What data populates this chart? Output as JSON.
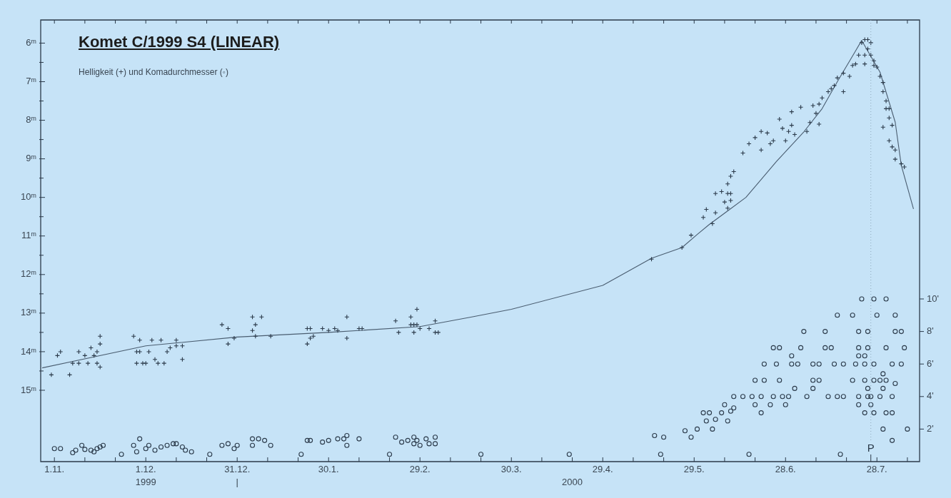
{
  "chart_data": {
    "type": "scatter",
    "title": "Komet C/1999 S4 (LINEAR)",
    "subtitle": "Helligkeit (+) und Komadurchmesser (◦)",
    "xlim": [
      "1999-10-27T12:00",
      "2000-08-11"
    ],
    "xticks": [
      {
        "value": "1999-11-01",
        "label": "1.11."
      },
      {
        "value": "1999-11-11",
        "label": null
      },
      {
        "value": "1999-11-21",
        "label": null
      },
      {
        "value": "1999-12-01",
        "label": "1.12."
      },
      {
        "value": "1999-12-11",
        "label": null
      },
      {
        "value": "1999-12-21",
        "label": null
      },
      {
        "value": "1999-12-31",
        "label": "31.12."
      },
      {
        "value": "2000-01-10",
        "label": null
      },
      {
        "value": "2000-01-20",
        "label": null
      },
      {
        "value": "2000-01-30",
        "label": "30.1."
      },
      {
        "value": "2000-02-09",
        "label": null
      },
      {
        "value": "2000-02-19",
        "label": null
      },
      {
        "value": "2000-02-29",
        "label": "29.2."
      },
      {
        "value": "2000-03-10",
        "label": null
      },
      {
        "value": "2000-03-20",
        "label": null
      },
      {
        "value": "2000-03-30",
        "label": "30.3."
      },
      {
        "value": "2000-04-09",
        "label": null
      },
      {
        "value": "2000-04-19",
        "label": null
      },
      {
        "value": "2000-04-29",
        "label": "29.4."
      },
      {
        "value": "2000-05-09",
        "label": null
      },
      {
        "value": "2000-05-19",
        "label": null
      },
      {
        "value": "2000-05-29",
        "label": "29.5."
      },
      {
        "value": "2000-06-08",
        "label": null
      },
      {
        "value": "2000-06-18",
        "label": null
      },
      {
        "value": "2000-06-28",
        "label": "28.6."
      },
      {
        "value": "2000-07-08",
        "label": null
      },
      {
        "value": "2000-07-18",
        "label": null
      },
      {
        "value": "2000-07-28",
        "label": "28.7."
      },
      {
        "value": "2000-08-07",
        "label": null
      }
    ],
    "ylim": [
      16.85,
      5.4
    ],
    "yticks": [
      {
        "value": 6,
        "label": "6ᵐ"
      },
      {
        "value": 6.5,
        "label": null
      },
      {
        "value": 7,
        "label": "7ᵐ"
      },
      {
        "value": 7.5,
        "label": null
      },
      {
        "value": 8,
        "label": "8ᵐ"
      },
      {
        "value": 8.5,
        "label": null
      },
      {
        "value": 9,
        "label": "9ᵐ"
      },
      {
        "value": 9.5,
        "label": null
      },
      {
        "value": 10,
        "label": "10ᵐ"
      },
      {
        "value": 10.5,
        "label": null
      },
      {
        "value": 11,
        "label": "11ᵐ"
      },
      {
        "value": 11.5,
        "label": null
      },
      {
        "value": 12,
        "label": "12ᵐ"
      },
      {
        "value": 12.5,
        "label": null
      },
      {
        "value": 13,
        "label": "13ᵐ"
      },
      {
        "value": 13.5,
        "label": null
      },
      {
        "value": 14,
        "label": "14ᵐ"
      },
      {
        "value": 14.5,
        "label": null
      },
      {
        "value": 15,
        "label": "15ᵐ"
      }
    ],
    "y2lim": [
      0,
      27.15
    ],
    "y2ticks": [
      {
        "value": 2,
        "label": "2'"
      },
      {
        "value": 4,
        "label": "4'"
      },
      {
        "value": 6,
        "label": "6'"
      },
      {
        "value": 8,
        "label": "8'"
      },
      {
        "value": 10,
        "label": "10'"
      }
    ],
    "legend": false,
    "ref_lines": [
      {
        "axis": "x",
        "value": "2000-07-26",
        "label": "P",
        "line_style": "dotted",
        "color": "#8fa9bd"
      }
    ],
    "x2lim": [
      "1999-10-27T12:00",
      "2000-08-11"
    ],
    "x2ticks": [
      {
        "value": "1999-12-01",
        "label": "1999"
      },
      {
        "value": "1999-12-31",
        "label": "|"
      },
      {
        "value": "2000-04-19",
        "label": "2000"
      }
    ],
    "series": [
      {
        "marker": "cross",
        "color": "#2b3a4a",
        "x": [
          "1999-10-31",
          "1999-11-02",
          "1999-11-03",
          "1999-11-06",
          "1999-11-07",
          "1999-11-09",
          "1999-11-09",
          "1999-11-11",
          "1999-11-12",
          "1999-11-13",
          "1999-11-14",
          "1999-11-15",
          "1999-11-15",
          "1999-11-16",
          "1999-11-16",
          "1999-11-16",
          "1999-11-27",
          "1999-11-28",
          "1999-11-28",
          "1999-11-29",
          "1999-11-29",
          "1999-11-30",
          "1999-12-01",
          "1999-12-02",
          "1999-12-03",
          "1999-12-04",
          "1999-12-05",
          "1999-12-06",
          "1999-12-07",
          "1999-12-08",
          "1999-12-09",
          "1999-12-11",
          "1999-12-11",
          "1999-12-13",
          "1999-12-13",
          "1999-12-26",
          "1999-12-28",
          "1999-12-28",
          "1999-12-30",
          "2000-01-05",
          "2000-01-06",
          "2000-01-05",
          "2000-01-06",
          "2000-01-08",
          "2000-01-11",
          "2000-01-23",
          "2000-01-24",
          "2000-01-23",
          "2000-01-24",
          "2000-01-25",
          "2000-01-28",
          "2000-01-30",
          "2000-02-01",
          "2000-02-02",
          "2000-02-05",
          "2000-02-05",
          "2000-02-09",
          "2000-02-10",
          "2000-02-21",
          "2000-02-22",
          "2000-02-26",
          "2000-02-26",
          "2000-02-27",
          "2000-02-27",
          "2000-02-28",
          "2000-02-28",
          "2000-02-29",
          "2000-03-03",
          "2000-03-05",
          "2000-03-05",
          "2000-03-06",
          "2000-05-15",
          "2000-05-25",
          "2000-05-28",
          "2000-06-01",
          "2000-06-02",
          "2000-06-05",
          "2000-06-04",
          "2000-06-05",
          "2000-06-07",
          "2000-06-09",
          "2000-06-10",
          "2000-06-08",
          "2000-06-10",
          "2000-06-09",
          "2000-06-09",
          "2000-06-10",
          "2000-06-11",
          "2000-06-14",
          "2000-06-16",
          "2000-06-18",
          "2000-06-20",
          "2000-06-22",
          "2000-06-20",
          "2000-06-23",
          "2000-06-24",
          "2000-06-26",
          "2000-06-27",
          "2000-06-28",
          "2000-06-29",
          "2000-06-30",
          "2000-07-01",
          "2000-06-30",
          "2000-07-03",
          "2000-07-05",
          "2000-07-06",
          "2000-07-07",
          "2000-07-09",
          "2000-07-08",
          "2000-07-09",
          "2000-07-10",
          "2000-07-12",
          "2000-07-13",
          "2000-07-14",
          "2000-07-15",
          "2000-07-17",
          "2000-07-17",
          "2000-07-19",
          "2000-07-20",
          "2000-07-22",
          "2000-07-23",
          "2000-07-24",
          "2000-07-25",
          "2000-07-26",
          "2000-07-25",
          "2000-07-24",
          "2000-07-26",
          "2000-07-27",
          "2000-07-21",
          "2000-07-24",
          "2000-07-27",
          "2000-07-28",
          "2000-07-29",
          "2000-07-30",
          "2000-07-30",
          "2000-07-31",
          "2000-07-31",
          "2000-08-01",
          "2000-07-30",
          "2000-08-01",
          "2000-08-02",
          "2000-08-01",
          "2000-08-02",
          "2000-08-03",
          "2000-08-03",
          "2000-08-05",
          "2000-08-06"
        ],
        "values": [
          14.6,
          14.1,
          14.0,
          14.6,
          14.3,
          14.3,
          14.0,
          14.1,
          14.3,
          13.9,
          14.1,
          14.3,
          14.0,
          14.4,
          13.6,
          13.8,
          13.6,
          14.0,
          14.3,
          13.7,
          14.0,
          14.3,
          14.3,
          14.0,
          13.7,
          14.2,
          14.3,
          13.7,
          14.3,
          14.0,
          13.9,
          13.7,
          13.85,
          13.85,
          14.2,
          13.3,
          13.4,
          13.8,
          13.65,
          13.1,
          13.3,
          13.45,
          13.6,
          13.1,
          13.6,
          13.4,
          13.4,
          13.8,
          13.65,
          13.6,
          13.4,
          13.45,
          13.4,
          13.45,
          13.1,
          13.65,
          13.4,
          13.4,
          13.2,
          13.5,
          13.1,
          13.3,
          13.3,
          13.5,
          13.3,
          12.9,
          13.4,
          13.4,
          13.2,
          13.5,
          13.5,
          11.6,
          11.3,
          10.98,
          10.52,
          10.31,
          10.4,
          10.68,
          9.9,
          9.85,
          9.9,
          9.9,
          10.12,
          10.08,
          10.28,
          9.65,
          9.45,
          9.33,
          8.85,
          8.61,
          8.45,
          8.29,
          8.33,
          8.77,
          8.61,
          8.53,
          7.97,
          8.21,
          8.53,
          8.29,
          8.13,
          8.37,
          7.78,
          7.66,
          8.29,
          8.06,
          7.62,
          7.58,
          7.82,
          8.1,
          7.42,
          7.26,
          7.18,
          7.1,
          6.9,
          6.78,
          7.26,
          6.86,
          6.58,
          6.31,
          5.99,
          5.91,
          5.91,
          5.99,
          6.15,
          6.31,
          6.31,
          6.46,
          6.54,
          6.54,
          6.58,
          6.62,
          6.86,
          7.02,
          7.26,
          7.5,
          7.7,
          7.7,
          8.18,
          7.94,
          8.13,
          8.53,
          8.69,
          8.77,
          9.01,
          9.13,
          9.21
        ]
      },
      {
        "type": "line",
        "marker": "none",
        "color": "#4a5d70",
        "x": [
          "1999-10-28",
          "1999-12-01",
          "1999-12-31",
          "2000-01-30",
          "2000-02-29",
          "2000-03-17",
          "2000-03-30",
          "2000-04-29",
          "2000-05-15",
          "2000-05-25",
          "2000-05-30",
          "2000-06-03",
          "2000-06-15",
          "2000-06-25",
          "2000-07-04",
          "2000-07-10",
          "2000-07-15",
          "2000-07-21",
          "2000-07-23",
          "2000-07-29",
          "2000-08-03",
          "2000-08-05",
          "2000-08-09"
        ],
        "values": [
          14.42,
          13.85,
          13.62,
          13.5,
          13.35,
          13.1,
          12.9,
          12.28,
          11.58,
          11.3,
          10.96,
          10.7,
          10.0,
          9.07,
          8.3,
          7.7,
          7.0,
          6.2,
          5.93,
          6.75,
          8.05,
          9.17,
          10.3
        ]
      },
      {
        "marker": "circle",
        "axis": "y2",
        "color": "#2b3a4a",
        "x": [
          "1999-11-01",
          "1999-11-03",
          "1999-11-07",
          "1999-11-08",
          "1999-11-10",
          "1999-11-11",
          "1999-11-13",
          "1999-11-14",
          "1999-11-15",
          "1999-11-16",
          "1999-11-17",
          "1999-11-27",
          "1999-11-28",
          "1999-11-29",
          "1999-12-01",
          "1999-12-02",
          "1999-12-04",
          "1999-12-06",
          "1999-12-08",
          "1999-12-10",
          "1999-12-11",
          "1999-12-13",
          "1999-12-14",
          "1999-12-16",
          "1999-12-26",
          "1999-12-28",
          "1999-12-30",
          "1999-12-31",
          "2000-01-05",
          "2000-01-05",
          "2000-01-07",
          "2000-01-09",
          "2000-01-11",
          "2000-01-23",
          "2000-01-24",
          "2000-01-28",
          "2000-01-30",
          "2000-02-02",
          "2000-02-04",
          "2000-02-05",
          "2000-02-05",
          "2000-02-09",
          "2000-02-21",
          "2000-02-23",
          "2000-02-25",
          "2000-02-27",
          "2000-02-27",
          "2000-02-28",
          "2000-02-29",
          "2000-03-02",
          "2000-03-03",
          "2000-03-05",
          "2000-03-05",
          "2000-05-16",
          "2000-05-19",
          "2000-05-26",
          "2000-05-28",
          "2000-05-30",
          "2000-06-01",
          "2000-06-03",
          "2000-06-02",
          "2000-06-04",
          "2000-06-05",
          "2000-06-07",
          "2000-06-08",
          "2000-06-09",
          "2000-06-10",
          "2000-06-11",
          "2000-06-11",
          "2000-06-14",
          "2000-06-17",
          "2000-06-20",
          "2000-06-18",
          "2000-06-20",
          "2000-06-18",
          "2000-06-21",
          "2000-06-26",
          "2000-06-21",
          "2000-06-25",
          "2000-06-24",
          "2000-06-26",
          "2000-06-23",
          "2000-06-24",
          "2000-06-27",
          "2000-06-28",
          "2000-06-29",
          "2000-06-30",
          "2000-07-02",
          "2000-06-30",
          "2000-07-01",
          "2000-07-03",
          "2000-07-04",
          "2000-07-05",
          "2000-07-07",
          "2000-07-07",
          "2000-07-07",
          "2000-07-09",
          "2000-07-09",
          "2000-07-11",
          "2000-07-11",
          "2000-07-12",
          "2000-07-13",
          "2000-07-14",
          "2000-07-15",
          "2000-07-15",
          "2000-07-17",
          "2000-07-17",
          "2000-07-20",
          "2000-07-21",
          "2000-07-22",
          "2000-07-22",
          "2000-07-22",
          "2000-07-22",
          "2000-07-20",
          "2000-07-22",
          "2000-07-23",
          "2000-07-24",
          "2000-07-24",
          "2000-07-25",
          "2000-07-25",
          "2000-07-24",
          "2000-07-24",
          "2000-07-25",
          "2000-07-25",
          "2000-07-26",
          "2000-07-27",
          "2000-07-27",
          "2000-07-27",
          "2000-07-26",
          "2000-07-27",
          "2000-07-28",
          "2000-07-29",
          "2000-07-29",
          "2000-07-30",
          "2000-07-31",
          "2000-07-30",
          "2000-07-30",
          "2000-07-31",
          "2000-07-31",
          "2000-07-31",
          "2000-08-02",
          "2000-08-02",
          "2000-08-02",
          "2000-08-02",
          "2000-08-03",
          "2000-08-03",
          "2000-08-03",
          "2000-08-05",
          "2000-08-05",
          "2000-08-06",
          "2000-08-07"
        ],
        "values": [
          0.8,
          0.8,
          0.55,
          0.7,
          1.0,
          0.75,
          0.7,
          0.6,
          0.8,
          0.9,
          1.0,
          1.0,
          0.6,
          1.4,
          0.8,
          1.0,
          0.7,
          0.9,
          1.0,
          1.1,
          1.1,
          0.9,
          0.7,
          0.6,
          1.0,
          1.1,
          0.8,
          1.0,
          1.4,
          1.0,
          1.4,
          1.3,
          1.0,
          1.3,
          1.3,
          1.2,
          1.3,
          1.4,
          1.4,
          1.6,
          1.0,
          1.4,
          1.5,
          1.2,
          1.3,
          1.5,
          1.1,
          1.3,
          1.0,
          1.4,
          1.1,
          1.5,
          1.1,
          1.6,
          1.5,
          1.9,
          1.5,
          2.0,
          3.0,
          3.0,
          2.5,
          2.0,
          2.6,
          3.0,
          3.5,
          2.5,
          3.1,
          3.3,
          4.0,
          4.0,
          4.0,
          4.0,
          3.5,
          3.0,
          5.0,
          5.0,
          5.0,
          6.0,
          6.0,
          7.0,
          7.0,
          3.5,
          4.0,
          4.0,
          3.5,
          4.0,
          6.0,
          6.0,
          6.5,
          4.5,
          7.0,
          8.0,
          4.0,
          6.0,
          5.0,
          4.5,
          6.0,
          5.0,
          7.0,
          8.0,
          4.0,
          7.0,
          6.0,
          4.0,
          9.0,
          6.0,
          4.0,
          9.0,
          6.0,
          8.0,
          7.0,
          6.5,
          4.0,
          5.0,
          3.5,
          10.0,
          3.0,
          6.5,
          8.0,
          7.0,
          6.0,
          5.0,
          4.5,
          4.0,
          3.5,
          10.0,
          6.0,
          5.0,
          4.0,
          3.0,
          9.0,
          5.0,
          4.0,
          4.5,
          10.0,
          2.0,
          5.4,
          7.0,
          5.0,
          3.0,
          6.0,
          4.0,
          3.0,
          1.3,
          9.0,
          8.0,
          4.8,
          8.0,
          6.0,
          7.0,
          2.0
        ]
      },
      {
        "marker": "circle",
        "axis": "y2",
        "color": "#2b3a4a",
        "x": [
          "1999-11-23",
          "1999-12-22",
          "2000-01-21",
          "2000-02-19",
          "2000-03-20",
          "2000-04-18",
          "2000-05-18",
          "2000-06-16",
          "2000-07-16"
        ],
        "values": [
          0.45,
          0.45,
          0.45,
          0.45,
          0.45,
          0.45,
          0.45,
          0.45,
          0.45
        ]
      }
    ]
  }
}
